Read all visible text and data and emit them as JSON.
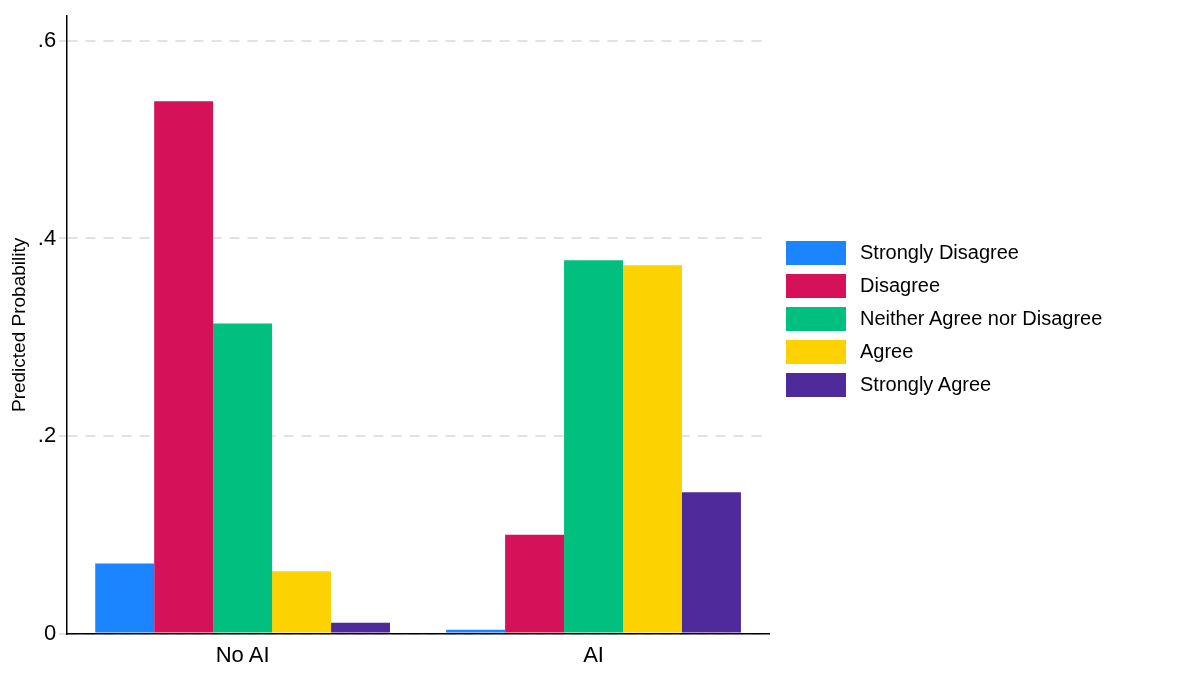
{
  "chart_data": {
    "type": "bar",
    "ylabel": "Predicted Probability",
    "categories": [
      "No AI",
      "AI"
    ],
    "series": [
      {
        "name": "Strongly Disagree",
        "color": "#1a85ff",
        "values": [
          0.071,
          0.004
        ]
      },
      {
        "name": "Disagree",
        "color": "#d41159",
        "values": [
          0.539,
          0.1
        ]
      },
      {
        "name": "Neither Agree nor Disagree",
        "color": "#00bf7f",
        "values": [
          0.314,
          0.378
        ]
      },
      {
        "name": "Agree",
        "color": "#fcd200",
        "values": [
          0.063,
          0.373
        ]
      },
      {
        "name": "Strongly Agree",
        "color": "#4f2a9a",
        "values": [
          0.011,
          0.143
        ]
      }
    ],
    "ylim": [
      0,
      0.625
    ],
    "yticks": [
      0,
      {
        "value": 0.2,
        "label": ".2"
      },
      {
        "value": 0.4,
        "label": ".4"
      },
      {
        "value": 0.6,
        "label": ".6"
      }
    ],
    "grid": "y",
    "legend": "right"
  }
}
